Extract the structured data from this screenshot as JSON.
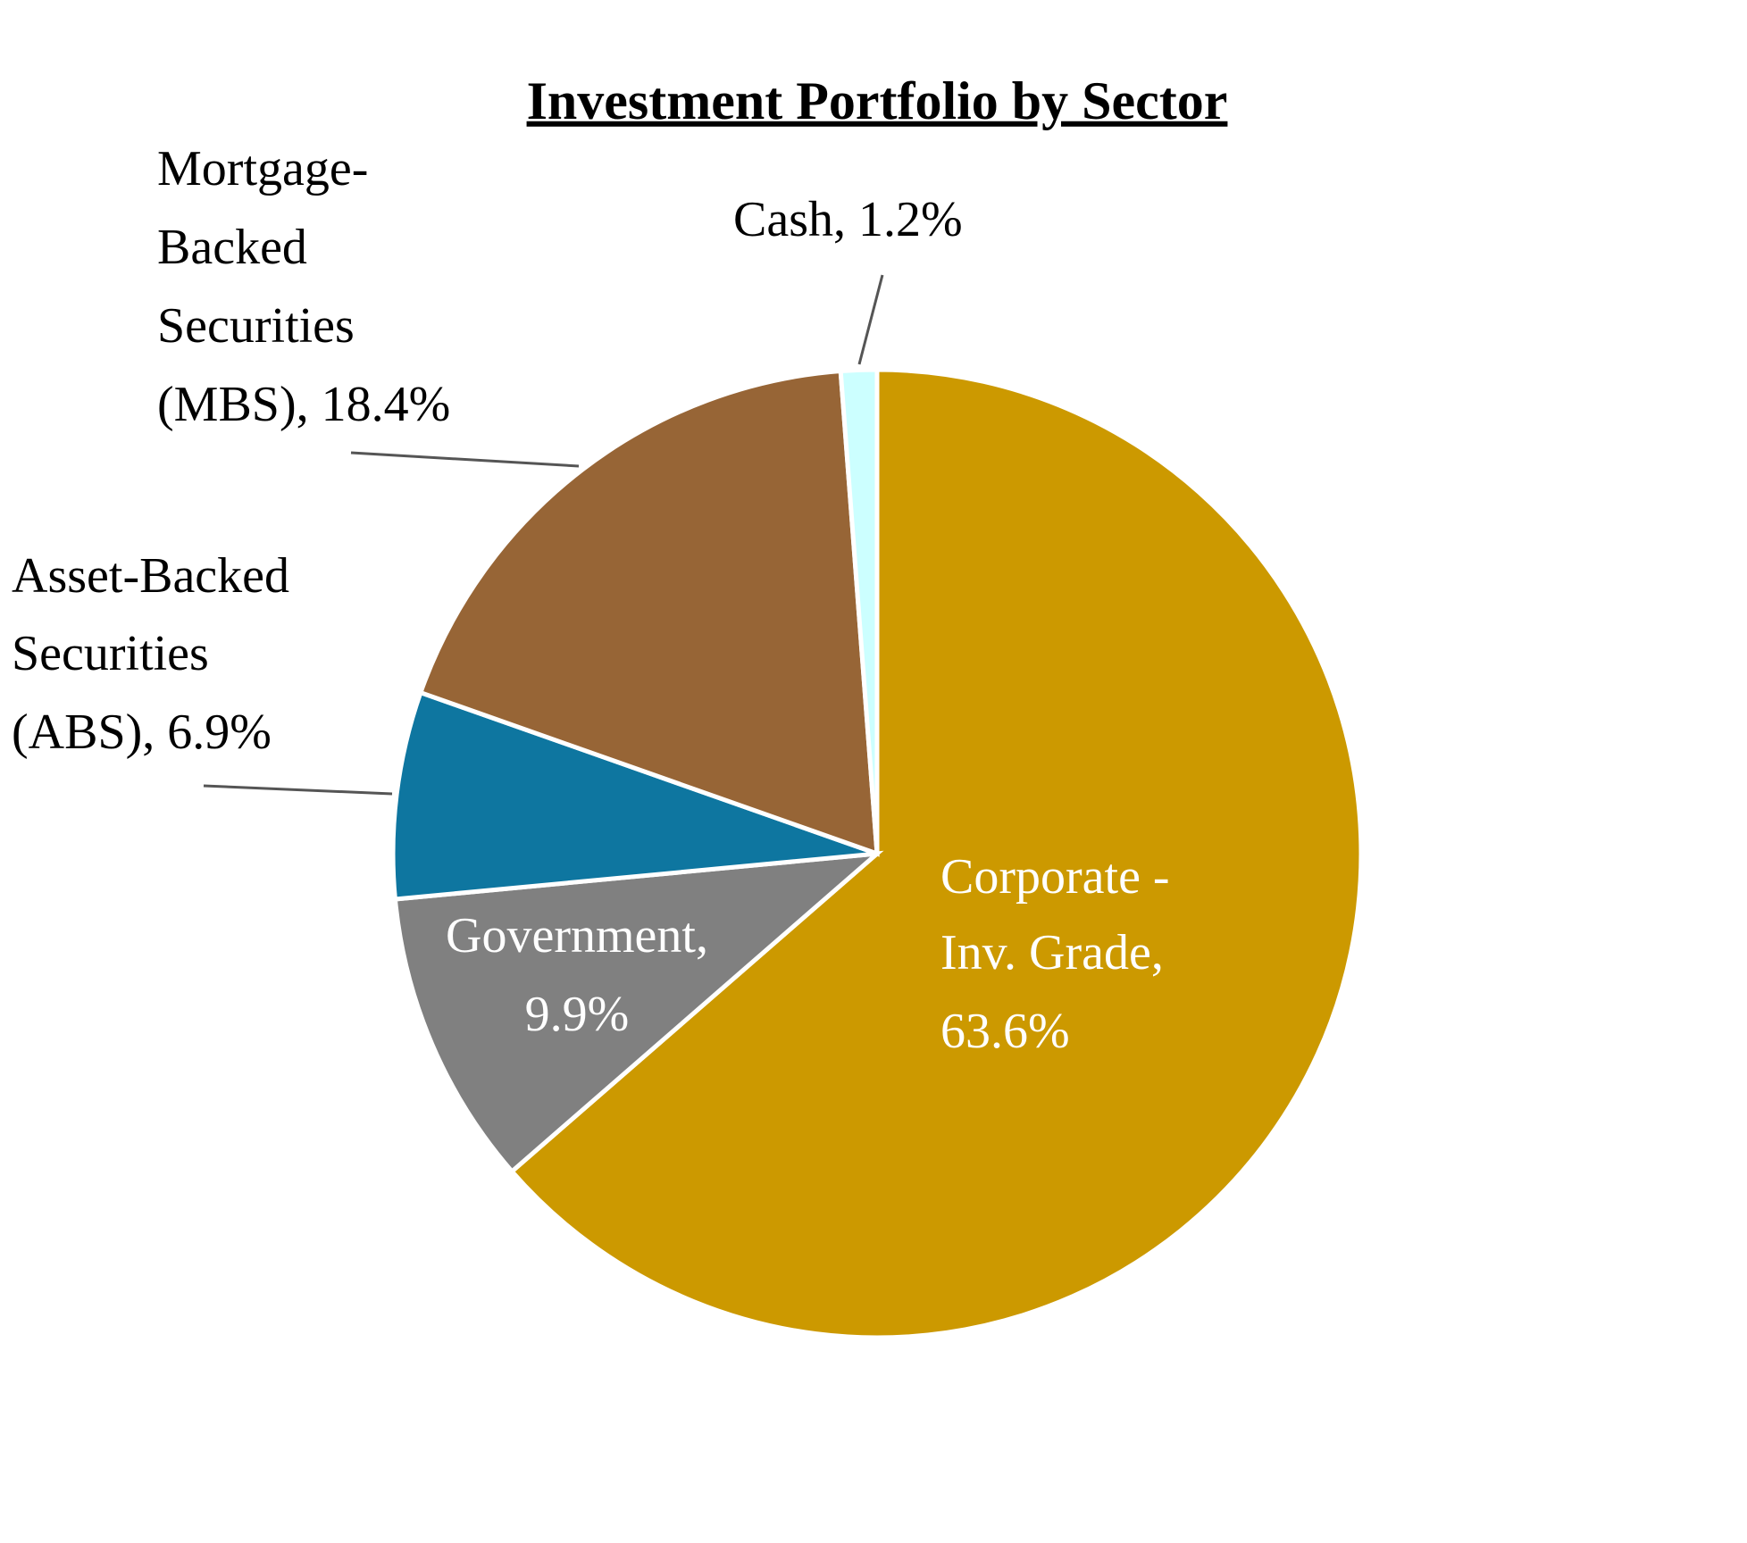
{
  "chart_data": {
    "type": "pie",
    "title": "Investment Portfolio by Sector",
    "values": [
      63.6,
      9.9,
      6.9,
      18.4,
      1.2
    ],
    "value_labels": [
      [
        "Corporate -",
        "Inv. Grade,",
        "63.6%"
      ],
      [
        "Government,",
        "9.9%"
      ],
      [
        "Asset-Backed",
        "Securities",
        "(ABS), 6.9%"
      ],
      [
        "Mortgage-",
        "Backed",
        "Securities",
        "(MBS), 18.4%"
      ],
      [
        "Cash, 1.2%"
      ]
    ],
    "colors": [
      "#cc9900",
      "#808080",
      "#0e76a0",
      "#976536",
      "#ccffff"
    ]
  }
}
